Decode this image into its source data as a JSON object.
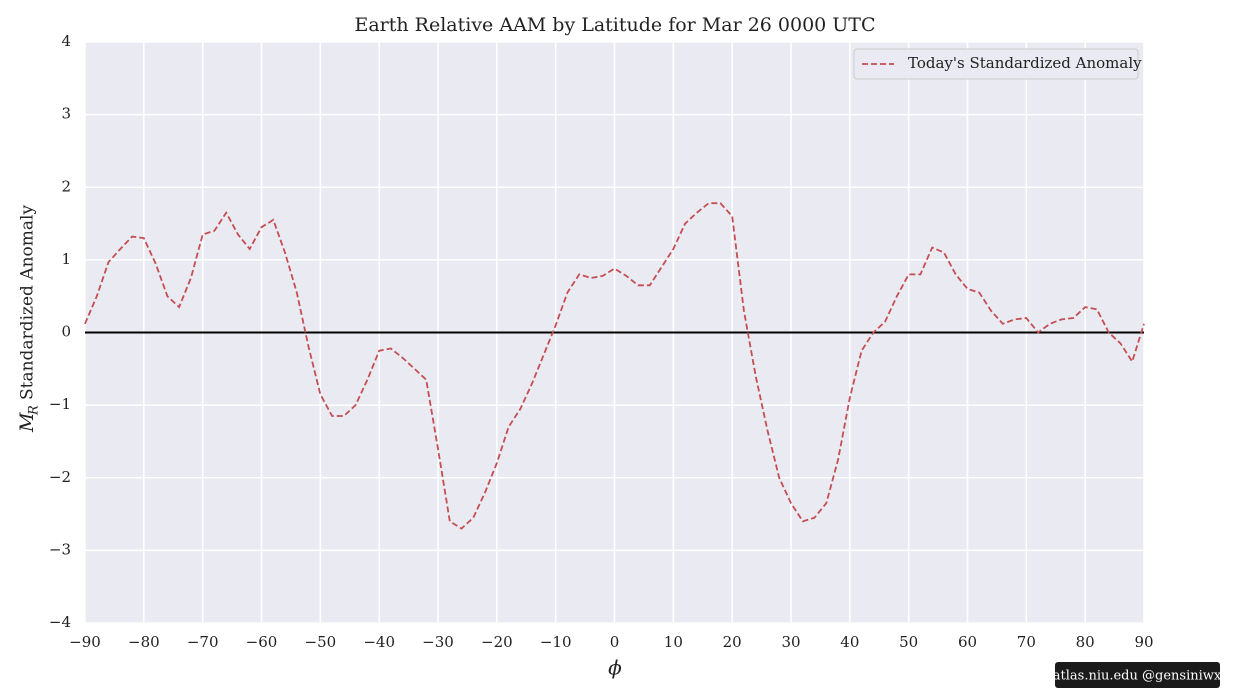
{
  "chart_data": {
    "type": "line",
    "title": "Earth Relative AAM by Latitude for Mar 26 0000 UTC",
    "x_label": "ϕ",
    "y_label_symbol": "M",
    "y_label_symbol_sub": "R",
    "y_label": "Standardized Anomaly",
    "x": [
      -90,
      -88,
      -86,
      -84,
      -82,
      -80,
      -78,
      -76,
      -74,
      -72,
      -70,
      -68,
      -66,
      -64,
      -62,
      -60,
      -58,
      -56,
      -54,
      -52,
      -50,
      -48,
      -46,
      -44,
      -42,
      -40,
      -38,
      -36,
      -34,
      -32,
      -30,
      -28,
      -26,
      -24,
      -22,
      -20,
      -18,
      -16,
      -14,
      -12,
      -10,
      -8,
      -6,
      -4,
      -2,
      0,
      2,
      4,
      6,
      8,
      10,
      12,
      14,
      16,
      18,
      20,
      22,
      24,
      26,
      28,
      30,
      32,
      34,
      36,
      38,
      40,
      42,
      44,
      46,
      48,
      50,
      52,
      54,
      56,
      58,
      60,
      62,
      64,
      66,
      68,
      70,
      72,
      74,
      76,
      78,
      80,
      82,
      84,
      86,
      88,
      90
    ],
    "series": [
      {
        "name": "Today's Standardized Anomaly",
        "color": "#c44e52",
        "dashed": true,
        "values": [
          0.12,
          0.5,
          0.97,
          1.15,
          1.32,
          1.3,
          0.95,
          0.5,
          0.35,
          0.75,
          1.35,
          1.4,
          1.65,
          1.35,
          1.15,
          1.45,
          1.55,
          1.1,
          0.55,
          -0.2,
          -0.85,
          -1.15,
          -1.15,
          -1.0,
          -0.65,
          -0.25,
          -0.22,
          -0.35,
          -0.5,
          -0.65,
          -1.6,
          -2.6,
          -2.7,
          -2.55,
          -2.2,
          -1.8,
          -1.3,
          -1.05,
          -0.7,
          -0.3,
          0.1,
          0.55,
          0.8,
          0.75,
          0.78,
          0.88,
          0.78,
          0.65,
          0.65,
          0.9,
          1.15,
          1.5,
          1.65,
          1.78,
          1.78,
          1.6,
          0.3,
          -0.6,
          -1.35,
          -2.0,
          -2.35,
          -2.6,
          -2.55,
          -2.35,
          -1.75,
          -0.9,
          -0.25,
          0.0,
          0.15,
          0.5,
          0.8,
          0.8,
          1.17,
          1.1,
          0.8,
          0.6,
          0.55,
          0.3,
          0.12,
          0.18,
          0.2,
          0.0,
          0.12,
          0.18,
          0.2,
          0.35,
          0.32,
          0.0,
          -0.15,
          -0.4,
          0.12
        ]
      }
    ],
    "hline": 0,
    "hline_color": "#000000",
    "xlim": [
      -90,
      90
    ],
    "ylim": [
      -4,
      4
    ],
    "xticks": [
      {
        "value": -90,
        "label": "−90"
      },
      {
        "value": -80,
        "label": "−80"
      },
      {
        "value": -70,
        "label": "−70"
      },
      {
        "value": -60,
        "label": "−60"
      },
      {
        "value": -50,
        "label": "−50"
      },
      {
        "value": -40,
        "label": "−40"
      },
      {
        "value": -30,
        "label": "−30"
      },
      {
        "value": -20,
        "label": "−20"
      },
      {
        "value": -10,
        "label": "−10"
      },
      0,
      10,
      20,
      30,
      40,
      50,
      60,
      70,
      80,
      90
    ],
    "yticks": [
      {
        "value": -4,
        "label": "−4"
      },
      {
        "value": -3,
        "label": "−3"
      },
      {
        "value": -2,
        "label": "−2"
      },
      {
        "value": -1,
        "label": "−1"
      },
      0,
      1,
      2,
      3,
      4
    ],
    "grid": true,
    "legend": "upper right",
    "watermark": "atlas.niu.edu  @gensiniwx"
  }
}
